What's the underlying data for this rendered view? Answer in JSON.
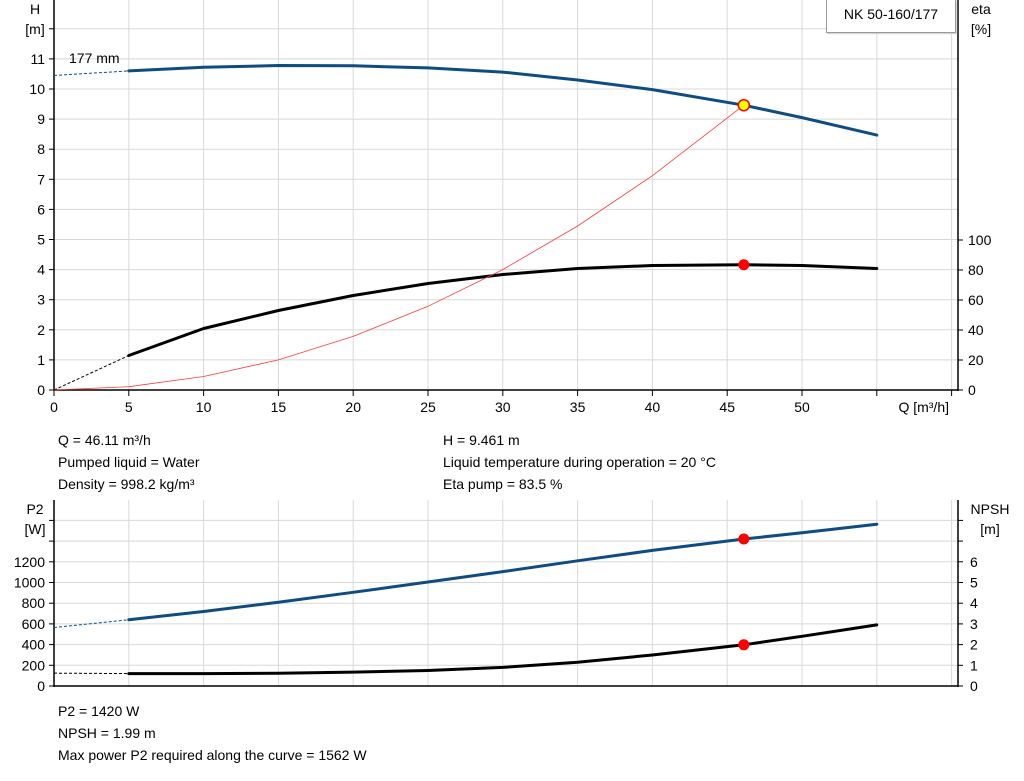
{
  "pump_label": "NK 50-160/177",
  "chart_data": [
    {
      "type": "line",
      "xlabel": "Q [m³/h]",
      "ylabel": "H\n[m]",
      "ylabel_top": "H",
      "ylabel_unit": "[m]",
      "y2label_top": "eta",
      "y2label_unit": "[%]",
      "xlim": [
        0,
        60
      ],
      "ylim": [
        0,
        12
      ],
      "y2lim": [
        0,
        100
      ],
      "grid": true,
      "x_ticks": [
        0,
        5,
        10,
        15,
        20,
        25,
        30,
        35,
        40,
        45,
        50
      ],
      "y_ticks": [
        0,
        1,
        2,
        3,
        4,
        5,
        6,
        7,
        8,
        9,
        10,
        11
      ],
      "y2_ticks": [
        0,
        20,
        40,
        60,
        80,
        100
      ],
      "annotation": "177 mm",
      "series": [
        {
          "key": "H",
          "axis": "left",
          "color": "#0f4c81",
          "x": [
            5,
            10,
            15,
            20,
            25,
            30,
            35,
            40,
            46.11,
            50,
            55
          ],
          "y": [
            10.6,
            10.72,
            10.78,
            10.77,
            10.7,
            10.56,
            10.3,
            9.98,
            9.461,
            9.05,
            8.47
          ],
          "extrapolated": {
            "x": [
              0,
              5
            ],
            "y": [
              10.45,
              10.6
            ]
          }
        },
        {
          "key": "eta",
          "axis": "right",
          "color": "#000000",
          "x": [
            5,
            10,
            15,
            20,
            25,
            30,
            35,
            40,
            46.11,
            50,
            55
          ],
          "y": [
            23,
            41,
            53,
            63,
            71,
            77,
            81,
            83,
            83.5,
            83,
            81
          ],
          "extrapolated": {
            "x": [
              0,
              5
            ],
            "y": [
              0,
              23
            ]
          }
        },
        {
          "key": "system",
          "axis": "left",
          "color": "#ff3b3b",
          "x": [
            0,
            5,
            10,
            15,
            20,
            25,
            30,
            35,
            40,
            46.11
          ],
          "y": [
            0,
            0.11,
            0.45,
            1.0,
            1.78,
            2.78,
            4.0,
            5.45,
            7.12,
            9.461
          ]
        }
      ],
      "duty_point": {
        "x": 46.11,
        "H": 9.461,
        "eta": 83.5
      }
    },
    {
      "type": "line",
      "ylabel_top": "P2",
      "ylabel_unit": "[W]",
      "y2label_top": "NPSH",
      "y2label_unit": "[m]",
      "xlim": [
        0,
        60
      ],
      "ylim": [
        0,
        1600
      ],
      "y2lim": [
        0,
        8
      ],
      "grid": true,
      "y_ticks": [
        0,
        200,
        400,
        600,
        800,
        1000,
        1200
      ],
      "y2_ticks": [
        0,
        1,
        2,
        3,
        4,
        5,
        6
      ],
      "series": [
        {
          "key": "P2",
          "axis": "left",
          "color": "#0f4c81",
          "x": [
            5,
            10,
            15,
            20,
            25,
            30,
            35,
            40,
            46.11,
            50,
            55
          ],
          "y": [
            640,
            720,
            810,
            905,
            1005,
            1105,
            1210,
            1310,
            1420,
            1480,
            1562
          ],
          "extrapolated": {
            "x": [
              0,
              5
            ],
            "y": [
              565,
              640
            ]
          }
        },
        {
          "key": "NPSH",
          "axis": "right",
          "color": "#000000",
          "x": [
            5,
            10,
            15,
            20,
            25,
            30,
            35,
            40,
            46.11,
            50,
            55
          ],
          "y": [
            0.6,
            0.6,
            0.62,
            0.67,
            0.75,
            0.9,
            1.15,
            1.5,
            1.99,
            2.4,
            2.95
          ],
          "extrapolated": {
            "x": [
              0,
              5
            ],
            "y": [
              0.62,
              0.6
            ]
          }
        }
      ],
      "duty_point": {
        "x": 46.11,
        "P2": 1420,
        "NPSH": 1.99
      }
    }
  ],
  "info_top": {
    "q": "Q = 46.11 m³/h",
    "liquid": "Pumped liquid = Water",
    "density": "Density = 998.2 kg/m³",
    "h": "H = 9.461 m",
    "temp": "Liquid temperature during operation = 20 °C",
    "eta": "Eta pump = 83.5 %"
  },
  "info_bottom": {
    "p2": "P2 = 1420 W",
    "npsh": "NPSH = 1.99 m",
    "maxp2": "Max power P2 required along the curve = 1562 W"
  }
}
